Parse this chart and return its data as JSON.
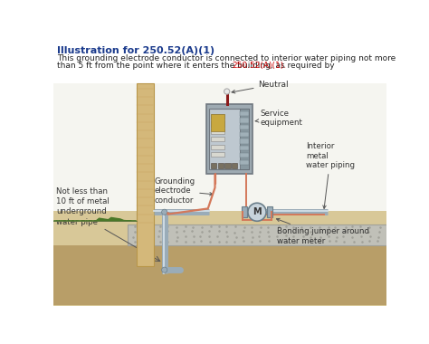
{
  "title": "Illustration for 250.52(A)(1)",
  "title_color": "#1a3a8c",
  "body_line1": "This grounding electrode conductor is connected to interior water piping not more",
  "body_line2": "than 5 ft from the point where it enters the building, as required by ",
  "ref_text": "250.52(A)(1).",
  "ref_color": "#cc0000",
  "bg_color": "#ffffff",
  "labels": {
    "neutral": "Neutral",
    "service_eq": "Service\nequipment",
    "grounding": "Grounding\nelectrode\nconductor",
    "interior": "Interior\nmetal\nwater piping",
    "not_less": "Not less than\n10 ft of metal\nunderground\nwater pipe",
    "bonding": "Bonding jumper around\nwater meter"
  },
  "colors": {
    "wall": "#d4b87a",
    "wall_edge": "#b8964a",
    "wall_lines": "#c8a05a",
    "panel_body": "#9eaab2",
    "panel_border": "#707880",
    "panel_face": "#bec8d0",
    "pipe": "#9aacb8",
    "pipe_highlight": "#d8e4ec",
    "pipe_shadow": "#6a7e8a",
    "ground_wire": "#d4785a",
    "concrete": "#c0c0b8",
    "concrete_border": "#a0a098",
    "soil_light": "#d8c898",
    "soil_dark": "#c0aa78",
    "underground": "#b89e68",
    "meter_fill": "#c8d4dc",
    "neutral_wire_red": "#8b1a1a",
    "neutral_wire_white": "#e8e8e8",
    "grass": "#4a7828",
    "label_color": "#333333",
    "arrow_color": "#555555"
  }
}
